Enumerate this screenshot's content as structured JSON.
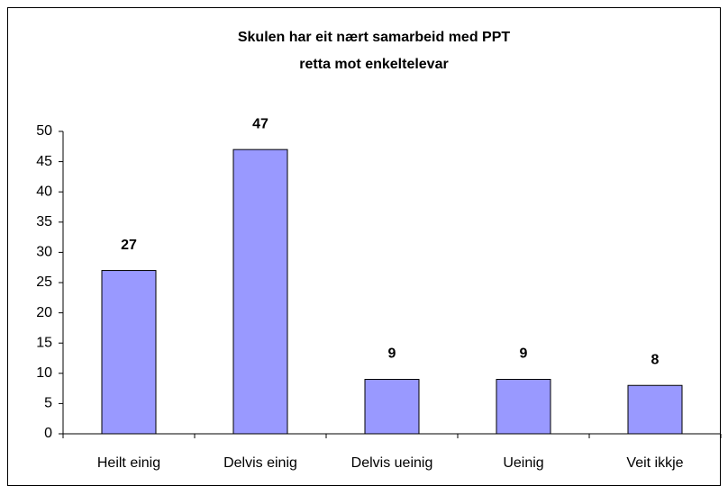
{
  "chart_data": {
    "type": "bar",
    "title": [
      "Skulen har eit nært samarbeid med PPT",
      "retta mot enkeltelevar"
    ],
    "categories": [
      "Heilt einig",
      "Delvis einig",
      "Delvis ueinig",
      "Ueinig",
      "Veit ikkje"
    ],
    "values": [
      27,
      47,
      9,
      9,
      8
    ],
    "color": "#9999ff",
    "ylim": [
      0,
      50
    ],
    "yticks": [
      0,
      5,
      10,
      15,
      20,
      25,
      30,
      35,
      40,
      45,
      50
    ],
    "grid": false
  }
}
